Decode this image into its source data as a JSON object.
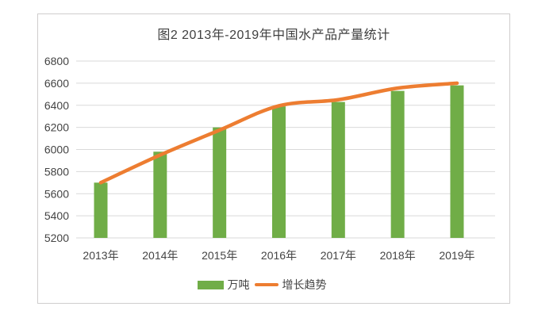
{
  "chart_data": {
    "type": "bar",
    "subtype": "bar-with-smooth-line-overlay",
    "title": "图2 2013年-2019年中国水产品产量统计",
    "categories": [
      "2013年",
      "2014年",
      "2015年",
      "2016年",
      "2017年",
      "2018年",
      "2019年"
    ],
    "series": [
      {
        "name": "万吨",
        "type": "bar",
        "color": "#70AD47",
        "values": [
          5700,
          5980,
          6200,
          6390,
          6430,
          6530,
          6580
        ]
      },
      {
        "name": "增长趋势",
        "type": "line",
        "smooth": true,
        "color": "#ED7D31",
        "values": [
          5700,
          5950,
          6175,
          6395,
          6450,
          6555,
          6600
        ]
      }
    ],
    "xlabel": "",
    "ylabel": "",
    "ylim": [
      5200,
      6800
    ],
    "yticks": [
      5200,
      5400,
      5600,
      5800,
      6000,
      6200,
      6400,
      6600,
      6800
    ],
    "grid": "horizontal",
    "legend_position": "bottom",
    "colors": {
      "gridline": "#d9d9d9",
      "axis_text": "#444444",
      "title_text": "#404040",
      "frame_border": "#cfcdcd",
      "background": "#ffffff"
    }
  }
}
